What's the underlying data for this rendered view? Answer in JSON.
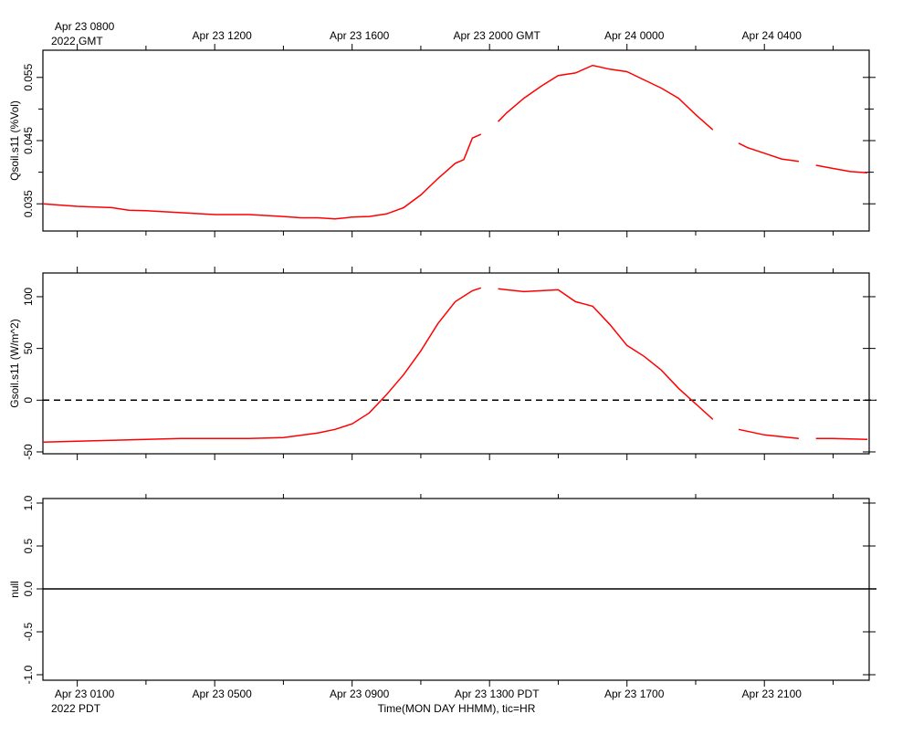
{
  "chart_data": [
    {
      "type": "line",
      "ylabel": "Qsoil.s11 (%Vol)",
      "xlim": [
        0,
        24.05
      ],
      "xticks": [
        {
          "value": 1,
          "label": "Apr 23 0800"
        },
        {
          "value": 5,
          "label": "Apr 23 1200"
        },
        {
          "value": 9,
          "label": "Apr 23 1600"
        },
        {
          "value": 13,
          "label": "Apr 23 2000 GMT"
        },
        {
          "value": 17,
          "label": "Apr 24 0000"
        },
        {
          "value": 21,
          "label": "Apr 24 0400"
        }
      ],
      "annotation": "2022 GMT",
      "ylim": [
        0.0307,
        0.0593
      ],
      "yticks": [
        0.035,
        0.045,
        0.055
      ],
      "yminorticks": [
        0.04,
        0.05
      ],
      "x": [
        0,
        1,
        2,
        2.5,
        3,
        4,
        5,
        6,
        7,
        7.5,
        8,
        8.5,
        9,
        9.5,
        10,
        10.5,
        11,
        11.5,
        12,
        12.25,
        12.5,
        12.75,
        13,
        13.25,
        13.5,
        14,
        14.5,
        15,
        15.5,
        16,
        16.5,
        17,
        17.5,
        18,
        18.5,
        19,
        19.5,
        20,
        20.25,
        20.5,
        21,
        21.5,
        22,
        22.25,
        22.5,
        23,
        23.5,
        24
      ],
      "series": [
        {
          "name": "Qsoil.s11",
          "color": "#ff0000",
          "values": [
            0.035,
            0.0346,
            0.0344,
            0.034,
            0.0339,
            0.0336,
            0.0333,
            0.0333,
            0.033,
            0.0328,
            0.0328,
            0.0326,
            0.0329,
            0.033,
            0.0334,
            0.0344,
            0.0364,
            0.039,
            0.0414,
            0.042,
            0.0454,
            0.046,
            null,
            0.048,
            0.0494,
            0.0517,
            0.0536,
            0.0553,
            0.0557,
            0.0569,
            0.0563,
            0.0559,
            0.0546,
            0.0533,
            0.0517,
            0.0491,
            0.0467,
            null,
            0.0446,
            0.0439,
            0.043,
            0.0421,
            0.0417,
            null,
            0.0411,
            0.0406,
            0.0401,
            0.0399
          ]
        }
      ]
    },
    {
      "type": "line",
      "ylabel": "Gsoil.s11 (W/m^2)",
      "xlim": [
        0,
        24.05
      ],
      "ylim": [
        -51.8,
        122.9
      ],
      "yticks": [
        -50,
        0,
        50,
        100
      ],
      "reference_line": {
        "value": 0,
        "style": "dashed"
      },
      "x": [
        0,
        1,
        2,
        3,
        4,
        5,
        6,
        7,
        8,
        8.5,
        9,
        9.5,
        10,
        10.5,
        11,
        11.5,
        12,
        12.5,
        12.75,
        13,
        13.25,
        13.5,
        14,
        14.5,
        15,
        15.5,
        16,
        16.5,
        17,
        17.5,
        18,
        18.5,
        19,
        19.5,
        20,
        20.25,
        21,
        21.5,
        22,
        22.25,
        22.5,
        23,
        24
      ],
      "series": [
        {
          "name": "Gsoil.s11",
          "color": "#ff0000",
          "values": [
            -40.6,
            -39.7,
            -38.8,
            -37.9,
            -37.0,
            -37.0,
            -37.0,
            -36.2,
            -31.7,
            -28.2,
            -22.9,
            -12.3,
            5.3,
            24.7,
            47.6,
            74.1,
            95.2,
            105.8,
            108.5,
            null,
            107.6,
            106.7,
            104.9,
            105.8,
            106.7,
            95.2,
            90.8,
            73.2,
            52.9,
            42.3,
            29.1,
            11.5,
            -3.5,
            -18.5,
            null,
            -28.2,
            -33.5,
            -35.3,
            -37.0,
            null,
            -37.0,
            -37.0,
            -37.9
          ]
        }
      ]
    },
    {
      "type": "line",
      "ylabel": "null",
      "xlim": [
        0,
        24.05
      ],
      "xticks": [
        {
          "value": 1,
          "label": "Apr 23 0100"
        },
        {
          "value": 5,
          "label": "Apr 23 0500"
        },
        {
          "value": 9,
          "label": "Apr 23 0900"
        },
        {
          "value": 13,
          "label": "Apr 23 1300 PDT"
        },
        {
          "value": 17,
          "label": "Apr 23 1700"
        },
        {
          "value": 21,
          "label": "Apr 23 2100"
        }
      ],
      "xminorticks": [
        3,
        7,
        11,
        15,
        19,
        23
      ],
      "annotation": "2022 PDT",
      "xlabel": "Time(MON DAY HHMM), tic=HR",
      "ylim": [
        -1.064,
        1.053
      ],
      "yticks": [
        {
          "value": -1,
          "label": "-1.0"
        },
        -0.5,
        {
          "value": 0,
          "label": "0.0"
        },
        0.5,
        {
          "value": 1,
          "label": "1.0"
        }
      ],
      "reference_line": {
        "value": 0,
        "style": "solid"
      }
    }
  ]
}
